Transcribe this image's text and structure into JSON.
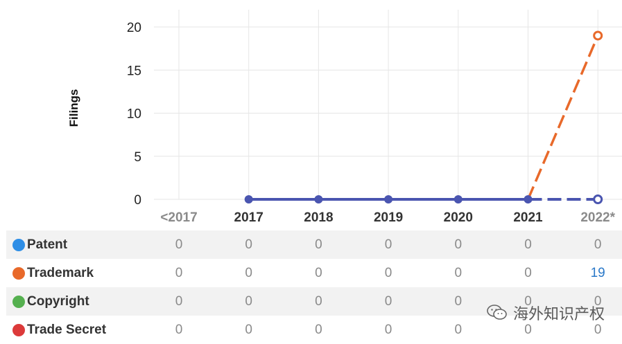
{
  "chart_data": {
    "type": "line",
    "ylabel": "Filings",
    "xlabel": "",
    "categories": [
      "<2017",
      "2017",
      "2018",
      "2019",
      "2020",
      "2021",
      "2022*"
    ],
    "ylim": [
      0,
      20
    ],
    "yticks": [
      0,
      5,
      10,
      15,
      20
    ],
    "grid": true,
    "series": [
      {
        "name": "Patent",
        "color": "#2e8ee6",
        "values": [
          0,
          0,
          0,
          0,
          0,
          0,
          0
        ]
      },
      {
        "name": "Trademark",
        "color": "#e8692a",
        "values": [
          0,
          0,
          0,
          0,
          0,
          0,
          19
        ]
      },
      {
        "name": "Copyright",
        "color": "#55b04f",
        "values": [
          0,
          0,
          0,
          0,
          0,
          0,
          0
        ]
      },
      {
        "name": "Trade Secret",
        "color": "#dc3a3a",
        "values": [
          0,
          0,
          0,
          0,
          0,
          0,
          0
        ]
      }
    ],
    "line_color": "#4a55b0",
    "projected_category": "2022*"
  },
  "table": {
    "rows": [
      {
        "label": "Patent",
        "values": [
          "0",
          "0",
          "0",
          "0",
          "0",
          "0",
          "0"
        ]
      },
      {
        "label": "Trademark",
        "values": [
          "0",
          "0",
          "0",
          "0",
          "0",
          "0",
          "19"
        ]
      },
      {
        "label": "Copyright",
        "values": [
          "0",
          "0",
          "0",
          "0",
          "0",
          "0",
          "0"
        ]
      },
      {
        "label": "Trade Secret",
        "values": [
          "0",
          "0",
          "0",
          "0",
          "0",
          "0",
          "0"
        ]
      }
    ]
  },
  "watermark": {
    "text": "海外知识产权",
    "icon": "wechat-icon"
  }
}
